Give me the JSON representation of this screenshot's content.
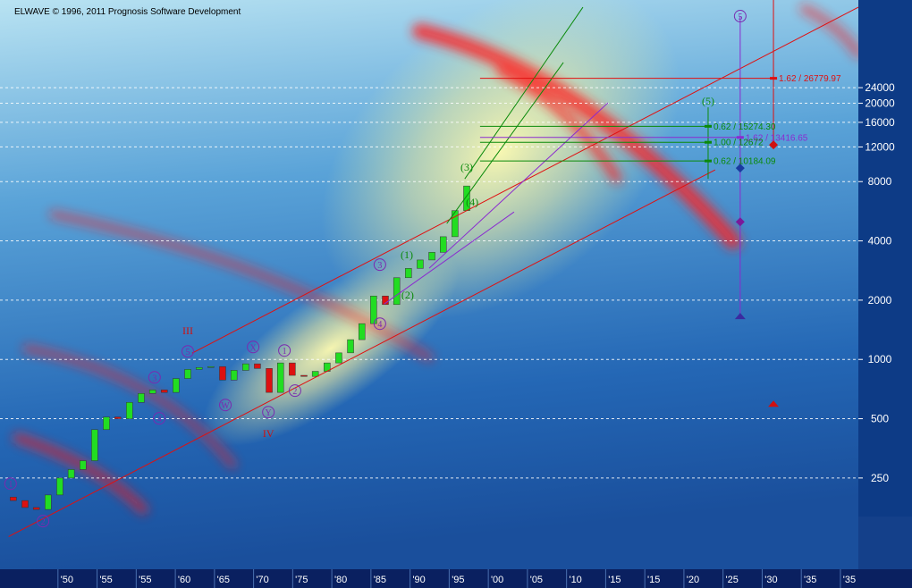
{
  "chart_data": {
    "type": "candlestick",
    "title": "ELWAVE © 1996, 2011 Prognosis Software Development",
    "log_scale": true,
    "grid": true,
    "ylim": [
      86,
      66900
    ],
    "yticks": [
      250,
      500,
      1000,
      2000,
      4000,
      8000,
      12000,
      16000,
      20000,
      24000
    ],
    "xlim": [
      -1.71,
      20.23
    ],
    "xticks": [
      {
        "value": 0,
        "label": "'50"
      },
      {
        "value": 1,
        "label": "'55"
      },
      {
        "value": 2,
        "label": "'55"
      },
      {
        "value": 3,
        "label": "'60"
      },
      {
        "value": 4,
        "label": "'65"
      },
      {
        "value": 5,
        "label": "'70"
      },
      {
        "value": 6,
        "label": "'75"
      },
      {
        "value": 7,
        "label": "'80"
      },
      {
        "value": 8,
        "label": "'85"
      },
      {
        "value": 9,
        "label": "'90"
      },
      {
        "value": 10,
        "label": "'95"
      },
      {
        "value": 11,
        "label": "'00"
      },
      {
        "value": 12,
        "label": "'05"
      },
      {
        "value": 13,
        "label": "'10"
      },
      {
        "value": 14,
        "label": "'15"
      },
      {
        "value": 15,
        "label": "'15"
      },
      {
        "value": 16,
        "label": "'20"
      },
      {
        "value": 17,
        "label": "'25"
      },
      {
        "value": 18,
        "label": "'30"
      },
      {
        "value": 19,
        "label": "'35"
      },
      {
        "value": 20,
        "label": "'35"
      }
    ],
    "candles": {
      "up_color": "#22dd22",
      "down_color": "#dd1111",
      "x": [
        -1.37,
        -1.07,
        -0.78,
        -0.48,
        -0.18,
        0.11,
        0.41,
        0.71,
        1.01,
        1.3,
        1.6,
        1.9,
        2.19,
        2.49,
        2.79,
        3.09,
        3.38,
        3.68,
        3.98,
        4.27,
        4.57,
        4.87,
        5.17,
        5.46,
        5.76,
        6.06,
        6.35,
        6.65,
        6.95,
        7.25,
        7.54,
        7.84,
        8.14,
        8.43,
        8.73,
        9.03,
        9.33,
        9.62,
        9.92,
        10.22
      ],
      "open": [
        200,
        192,
        177,
        173,
        205,
        250,
        276,
        306,
        440,
        510,
        500,
        605,
        672,
        700,
        680,
        800,
        890,
        910,
        920,
        786,
        880,
        950,
        900,
        680,
        960,
        830,
        820,
        870,
        960,
        1080,
        1260,
        1520,
        2100,
        1900,
        2600,
        2900,
        3200,
        3500,
        4200,
        5700
      ],
      "close": [
        192,
        177,
        173,
        205,
        250,
        276,
        306,
        440,
        510,
        500,
        605,
        672,
        700,
        680,
        800,
        890,
        910,
        920,
        786,
        880,
        950,
        900,
        680,
        960,
        830,
        820,
        870,
        960,
        1080,
        1260,
        1520,
        2100,
        1900,
        2600,
        2900,
        3200,
        3500,
        4200,
        5700,
        7600
      ]
    },
    "lines": [
      {
        "color": "#e01010",
        "x": [
          3.2,
          20.23
        ],
        "y": [
          1076,
          61500
        ]
      },
      {
        "color": "#e01010",
        "x": [
          -1.49,
          16.57
        ],
        "y": [
          126,
          9180
        ]
      },
      {
        "color": "#0a8a0a",
        "x": [
          10.17,
          13.19
        ],
        "y": [
          8260,
          61500
        ]
      },
      {
        "color": "#0a8a0a",
        "x": [
          9.71,
          12.69
        ],
        "y": [
          4900,
          32200
        ]
      },
      {
        "color": "#8a2bd0",
        "x": [
          8.11,
          11.43
        ],
        "y": [
          1912,
          5610
        ]
      },
      {
        "color": "#8a2bd0",
        "x": [
          9.26,
          13.83
        ],
        "y": [
          2905,
          20100
        ]
      },
      {
        "color": "#8a2bd0",
        "x": [
          17.21,
          17.21
        ],
        "y": [
          55400,
          1652
        ]
      },
      {
        "color": "#e01010",
        "x": [
          18.06,
          18.06
        ],
        "y": [
          66900,
          12300
        ]
      },
      {
        "color": "#0a8a0a",
        "x": [
          16.39,
          16.39
        ],
        "y": [
          19070,
          8260
        ]
      }
    ],
    "targets": [
      {
        "label": "1.62 / 26779.97",
        "value": 26779.97,
        "color": "#e01010",
        "x": [
          10.56,
          18.06
        ]
      },
      {
        "label": "0.62 / 15274.30",
        "value": 15274.3,
        "color": "#0a8a0a",
        "x": [
          10.56,
          16.39
        ]
      },
      {
        "label": "1.62 / 13416.65",
        "value": 13416.65,
        "color": "#8a2bd0",
        "x": [
          10.56,
          17.21
        ]
      },
      {
        "label": "1.00 / 12672",
        "value": 12672,
        "color": "#0a8a0a",
        "x": [
          10.56,
          16.39
        ]
      },
      {
        "label": "0.62 / 10184.09",
        "value": 10184.09,
        "color": "#0a8a0a",
        "x": [
          10.56,
          16.39
        ]
      }
    ],
    "markers": [
      {
        "shape": "diamond",
        "color": "#1a3aa0",
        "x": 17.21,
        "y": 9370
      },
      {
        "shape": "diamond",
        "color": "#7a1a9a",
        "x": 17.21,
        "y": 5000
      },
      {
        "shape": "triangle",
        "color": "#3a2aa0",
        "x": 17.21,
        "y": 1652
      },
      {
        "shape": "triangle",
        "color": "#d01010",
        "x": 18.06,
        "y": 593
      },
      {
        "shape": "diamond",
        "color": "#d01010",
        "x": 18.06,
        "y": 12300
      }
    ],
    "annotations": [
      {
        "text": "1",
        "x": -1.44,
        "y": 234,
        "color": "#7a2ab0",
        "circle": true
      },
      {
        "text": "2",
        "x": -0.61,
        "y": 151,
        "color": "#7a2ab0",
        "circle": true
      },
      {
        "text": "3",
        "x": 2.24,
        "y": 811,
        "color": "#7a2ab0",
        "circle": true
      },
      {
        "text": "4",
        "x": 2.36,
        "y": 502,
        "color": "#7a2ab0",
        "circle": true
      },
      {
        "text": "5",
        "x": 3.09,
        "y": 1099,
        "color": "#7a2ab0",
        "circle": true
      },
      {
        "text": "W",
        "x": 4.05,
        "y": 587,
        "color": "#7a2ab0",
        "circle": true
      },
      {
        "text": "X",
        "x": 4.76,
        "y": 1157,
        "color": "#7a2ab0",
        "circle": true
      },
      {
        "text": "Y",
        "x": 5.15,
        "y": 540,
        "color": "#7a2ab0",
        "circle": true
      },
      {
        "text": "1",
        "x": 5.56,
        "y": 1110,
        "color": "#7a2ab0",
        "circle": true
      },
      {
        "text": "2",
        "x": 5.83,
        "y": 694,
        "color": "#7a2ab0",
        "circle": true
      },
      {
        "text": "3",
        "x": 8.0,
        "y": 3029,
        "color": "#7a2ab0",
        "circle": true
      },
      {
        "text": "4",
        "x": 8.0,
        "y": 1519,
        "color": "#7a2ab0",
        "circle": true
      },
      {
        "text": "5",
        "x": 17.21,
        "y": 55400,
        "color": "#7a2ab0",
        "circle": true
      },
      {
        "text": "(1)",
        "x": 8.69,
        "y": 3398,
        "color": "#0a8a0a",
        "circle": false
      },
      {
        "text": "(2)",
        "x": 8.71,
        "y": 2123,
        "color": "#0a8a0a",
        "circle": false
      },
      {
        "text": "(3)",
        "x": 10.22,
        "y": 9470,
        "color": "#0a8a0a",
        "circle": false
      },
      {
        "text": "(4)",
        "x": 10.36,
        "y": 6300,
        "color": "#0a8a0a",
        "circle": false
      },
      {
        "text": "(5)",
        "x": 16.39,
        "y": 20500,
        "color": "#0a8a0a",
        "circle": false
      },
      {
        "text": "III",
        "x": 3.09,
        "y": 1397,
        "color": "#d01010",
        "circle": false
      },
      {
        "text": "IV",
        "x": 5.15,
        "y": 420,
        "color": "#d01010",
        "circle": false
      }
    ]
  }
}
